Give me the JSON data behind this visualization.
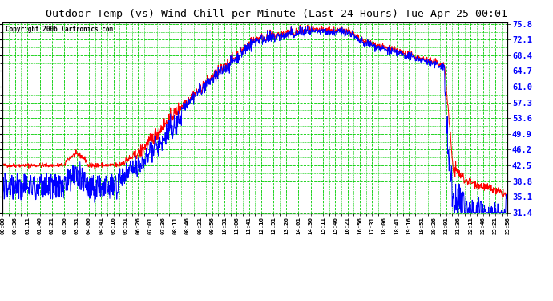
{
  "title": "Outdoor Temp (vs) Wind Chill per Minute (Last 24 Hours) Tue Apr 25 00:01",
  "copyright": "Copyright 2006 Cartronics.com",
  "yticks": [
    31.4,
    35.1,
    38.8,
    42.5,
    46.2,
    49.9,
    53.6,
    57.3,
    61.0,
    64.7,
    68.4,
    72.1,
    75.8
  ],
  "ymin": 31.4,
  "ymax": 75.8,
  "plot_bg_color": "#ffffff",
  "fig_bg_color": "#ffffff",
  "grid_color": "#00cc00",
  "title_fg": "#000000",
  "temp_color": "#ff0000",
  "windchill_color": "#0000ff",
  "n_points": 1440,
  "xtick_labels": [
    "00:00",
    "00:36",
    "01:11",
    "01:46",
    "02:21",
    "02:56",
    "03:31",
    "04:06",
    "04:41",
    "05:16",
    "05:51",
    "06:26",
    "07:01",
    "07:36",
    "08:11",
    "08:46",
    "09:21",
    "09:56",
    "10:31",
    "11:06",
    "11:41",
    "12:16",
    "12:51",
    "13:26",
    "14:01",
    "14:36",
    "15:11",
    "15:46",
    "16:21",
    "16:56",
    "17:31",
    "18:06",
    "18:41",
    "19:16",
    "19:51",
    "20:26",
    "21:01",
    "21:36",
    "22:11",
    "22:46",
    "23:21",
    "23:56"
  ]
}
